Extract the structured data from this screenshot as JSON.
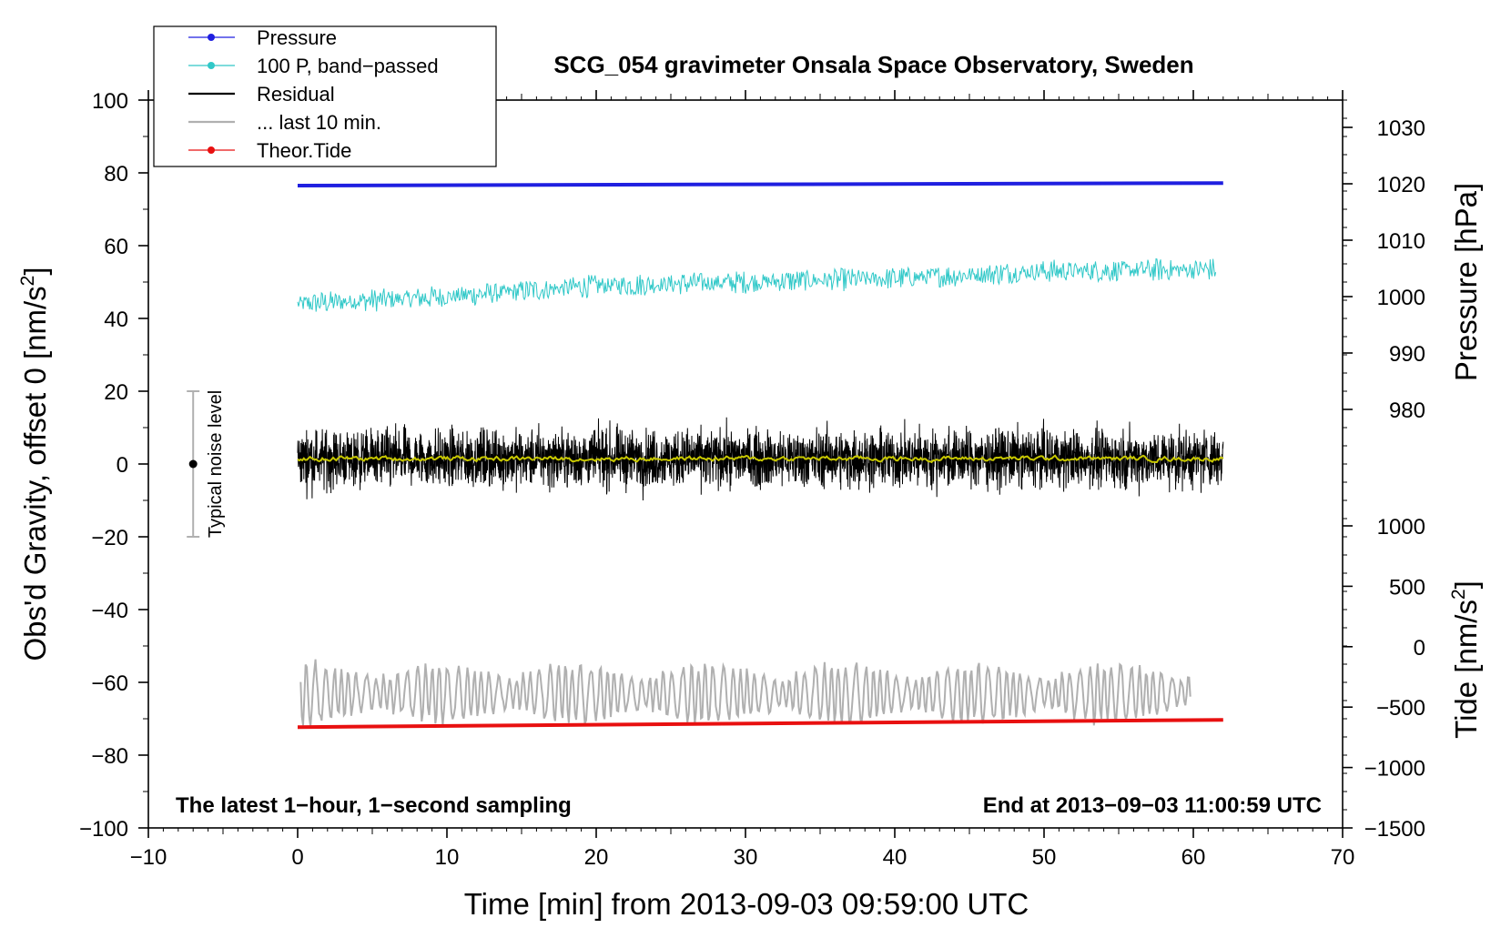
{
  "chart_data": {
    "type": "line",
    "title": "SCG_054 gravimeter Onsala Space Observatory, Sweden",
    "xlabel": "Time [min] from 2013-09-03 09:59:00 UTC",
    "ylabel": "Obs'd Gravity, offset 0 [nm/s",
    "ylabel_sup": "2",
    "ylabel_end": "]",
    "right_label_top": "Pressure [hPa]",
    "right_label_bottom": "Tide [nm/s",
    "right_label_bottom_sup": "2",
    "right_label_bottom_end": "]",
    "xlim": [
      -10,
      70
    ],
    "ylim": [
      -100,
      100
    ],
    "x_ticks": [
      -10,
      0,
      10,
      20,
      30,
      40,
      50,
      60,
      70
    ],
    "x_tick_labels": [
      "−10",
      "0",
      "10",
      "20",
      "30",
      "40",
      "50",
      "60",
      "70"
    ],
    "y_ticks": [
      -100,
      -80,
      -60,
      -40,
      -20,
      0,
      20,
      40,
      60,
      80,
      100
    ],
    "y_tick_labels": [
      "−100",
      "−80",
      "−60",
      "−40",
      "−20",
      "0",
      "20",
      "40",
      "60",
      "80",
      "100"
    ],
    "pressure_axis": {
      "ticks": [
        980,
        990,
        1000,
        1010,
        1020,
        1030
      ],
      "tick_labels": [
        "980",
        "990",
        "1000",
        "1010",
        "1020",
        "1030"
      ],
      "map": {
        "value_a": 1020,
        "left_a": 77,
        "value_b": 980,
        "left_b": 15
      }
    },
    "tide_axis": {
      "ticks": [
        -1500,
        -1000,
        -500,
        0,
        500,
        1000
      ],
      "tick_labels": [
        "−1500",
        "−1000",
        "−500",
        "0",
        "500",
        "1000"
      ],
      "map": {
        "value_a": -1500,
        "left_a": -100,
        "value_b": 1000,
        "left_b": -17
      }
    },
    "legend": {
      "position": "top-left",
      "entries": [
        {
          "label": "Pressure",
          "color": "#1f1fe0",
          "marker": "dot"
        },
        {
          "label": "100 P, band−passed",
          "color": "#30c8c8",
          "marker": "dot"
        },
        {
          "label": "Residual",
          "color": "#000000",
          "marker": "none"
        },
        {
          "label": "... last 10 min.",
          "color": "#b0b0b0",
          "marker": "none"
        },
        {
          "label": "Theor.Tide",
          "color": "#e81010",
          "marker": "dot"
        }
      ]
    },
    "noise_bar": {
      "label": "Typical noise level",
      "x": -7,
      "y_center": 0,
      "y_range": [
        -20,
        20
      ]
    },
    "annotations": {
      "bottom_left": "The latest 1−hour, 1−second sampling",
      "bottom_right": "End at 2013−09−03 11:00:59 UTC"
    },
    "series": [
      {
        "name": "Pressure",
        "color": "#1f1fe0",
        "x": [
          0,
          62
        ],
        "y": [
          76.5,
          77.2
        ],
        "style": "thick"
      },
      {
        "name": "100 P, band−passed",
        "color": "#30c8c8",
        "x_range": [
          0,
          61.5
        ],
        "trend_x": [
          0,
          10,
          20,
          30,
          40,
          50,
          61.5
        ],
        "trend_y": [
          44,
          46,
          49,
          50,
          51,
          53,
          53.5
        ],
        "amplitude": 2.5,
        "style": "noisy"
      },
      {
        "name": "Residual",
        "color": "#000000",
        "x_range": [
          0,
          62
        ],
        "mean": 1.5,
        "amplitude": 7,
        "min": -19,
        "max": 20,
        "style": "noisy"
      },
      {
        "name": "Residual smoothed",
        "color": "#c8c800",
        "x_range": [
          0,
          62
        ],
        "mean": 1.5,
        "amplitude": 0.8,
        "style": "noisy"
      },
      {
        "name": "... last 10 min.",
        "color": "#b0b0b0",
        "x_range": [
          0.2,
          59.8
        ],
        "mean": -63,
        "amplitude": 6,
        "min": -77,
        "max": -44,
        "style": "oscillating"
      },
      {
        "name": "Theor.Tide",
        "color": "#e81010",
        "x": [
          0,
          62
        ],
        "y": [
          -72.3,
          -70.3
        ],
        "style": "thick"
      }
    ]
  }
}
